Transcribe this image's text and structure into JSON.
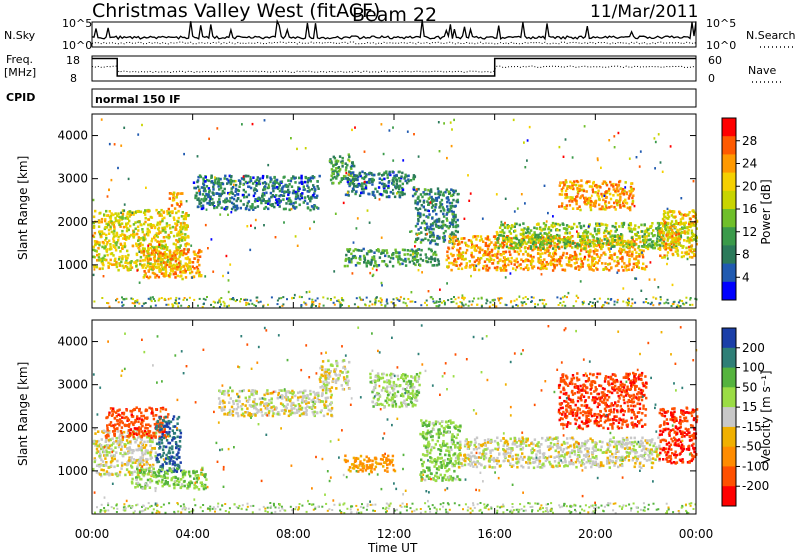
{
  "header": {
    "station": "Christmas Valley West (fitACF)",
    "beam": "Beam 22",
    "date": "11/Mar/2011"
  },
  "panels": {
    "nsky": {
      "label": "N.Sky",
      "right_label": "N.Search",
      "ticks_left": [
        "10^5",
        "10^0"
      ],
      "ticks_right": [
        "10^5",
        "10^0"
      ]
    },
    "freq": {
      "label_line1": "Freq.",
      "label_line2": "[MHz]",
      "right_label": "Nave",
      "ticks_left": [
        "18",
        "8"
      ],
      "ticks_right": [
        "60",
        "0"
      ]
    },
    "cpid": {
      "label": "CPID",
      "mode": "normal 150 IF"
    }
  },
  "xaxis": {
    "label": "Time UT",
    "ticks": [
      "00:00",
      "04:00",
      "08:00",
      "12:00",
      "16:00",
      "20:00",
      "00:00"
    ]
  },
  "power_colorbar": {
    "label": "Power [dB]",
    "ticks": [
      "28",
      "24",
      "20",
      "16",
      "12",
      "8",
      "4"
    ],
    "colors": [
      "#ff0000",
      "#ff5a00",
      "#ff9900",
      "#f5d000",
      "#c8d400",
      "#6fbf2a",
      "#3a9a4a",
      "#2b7a5a",
      "#205ab0",
      "#0000ff"
    ]
  },
  "velocity_colorbar": {
    "label": "Velocity [m s⁻¹]",
    "ticks": [
      "200",
      "100",
      "50",
      "15",
      "-15",
      "-50",
      "-100",
      "-200"
    ],
    "colors": [
      "#1b3fa8",
      "#2f7f77",
      "#55b33e",
      "#9bdc45",
      "#c8c8c8",
      "#f0b000",
      "#ff8c00",
      "#ff5000",
      "#ff0000"
    ]
  },
  "chart_data": {
    "type": "heatmap",
    "panels": [
      "Power",
      "Velocity"
    ],
    "x_range_hours": [
      0,
      24
    ],
    "y_range_km": [
      0,
      4500
    ],
    "ylabel": "Slant Range [km]",
    "xlabel": "Time UT",
    "y_ticks": [
      1000,
      2000,
      3000,
      4000
    ],
    "x_ticks": [
      "00:00",
      "04:00",
      "08:00",
      "12:00",
      "16:00",
      "20:00",
      "00:00"
    ],
    "frequency_segments_mhz": [
      {
        "from_h": 0,
        "to_h": 1.0,
        "value": 17
      },
      {
        "from_h": 1.0,
        "to_h": 16.0,
        "value": 10
      },
      {
        "from_h": 16.0,
        "to_h": 24,
        "value": 17
      }
    ],
    "power_regions": [
      {
        "t0": 0.0,
        "t1": 3.8,
        "r0": 900,
        "r1": 2300,
        "power_db": 18
      },
      {
        "t0": 2.0,
        "t1": 4.3,
        "r0": 700,
        "r1": 1400,
        "power_db": 22
      },
      {
        "t0": 3.0,
        "t1": 3.6,
        "r0": 2300,
        "r1": 2700,
        "power_db": 22
      },
      {
        "t0": 4.0,
        "t1": 9.0,
        "r0": 2300,
        "r1": 3100,
        "power_db": 7
      },
      {
        "t0": 9.4,
        "t1": 10.4,
        "r0": 2900,
        "r1": 3600,
        "power_db": 10
      },
      {
        "t0": 10.0,
        "t1": 12.8,
        "r0": 2600,
        "r1": 3200,
        "power_db": 7
      },
      {
        "t0": 10.0,
        "t1": 13.8,
        "r0": 1000,
        "r1": 1400,
        "power_db": 10
      },
      {
        "t0": 12.8,
        "t1": 14.5,
        "r0": 1500,
        "r1": 2800,
        "power_db": 8
      },
      {
        "t0": 14.0,
        "t1": 22.0,
        "r0": 900,
        "r1": 1700,
        "power_db": 22
      },
      {
        "t0": 16.0,
        "t1": 24.0,
        "r0": 1400,
        "r1": 2000,
        "power_db": 14
      },
      {
        "t0": 18.5,
        "t1": 21.5,
        "r0": 2300,
        "r1": 3000,
        "power_db": 22
      },
      {
        "t0": 22.5,
        "t1": 24.0,
        "r0": 1200,
        "r1": 2300,
        "power_db": 20
      }
    ],
    "velocity_regions": [
      {
        "t0": 0.0,
        "t1": 2.5,
        "r0": 900,
        "r1": 2000,
        "velocity": 0
      },
      {
        "t0": 0.5,
        "t1": 3.0,
        "r0": 1800,
        "r1": 2500,
        "velocity": -180
      },
      {
        "t0": 2.5,
        "t1": 3.5,
        "r0": 1000,
        "r1": 2300,
        "velocity": 200
      },
      {
        "t0": 1.5,
        "t1": 4.5,
        "r0": 600,
        "r1": 1100,
        "velocity": 40
      },
      {
        "t0": 5.0,
        "t1": 9.5,
        "r0": 2300,
        "r1": 2900,
        "velocity": 0
      },
      {
        "t0": 9.0,
        "t1": 10.2,
        "r0": 2900,
        "r1": 3600,
        "velocity": 0
      },
      {
        "t0": 10.0,
        "t1": 12.0,
        "r0": 1000,
        "r1": 1400,
        "velocity": -60
      },
      {
        "t0": 11.0,
        "t1": 13.0,
        "r0": 2500,
        "r1": 3300,
        "velocity": 30
      },
      {
        "t0": 13.0,
        "t1": 14.6,
        "r0": 800,
        "r1": 2200,
        "velocity": 40
      },
      {
        "t0": 14.5,
        "t1": 22.5,
        "r0": 1100,
        "r1": 1800,
        "velocity": 0
      },
      {
        "t0": 18.5,
        "t1": 22.0,
        "r0": 2000,
        "r1": 3300,
        "velocity": -190
      },
      {
        "t0": 22.5,
        "t1": 24.0,
        "r0": 1200,
        "r1": 2500,
        "velocity": -200
      }
    ]
  }
}
